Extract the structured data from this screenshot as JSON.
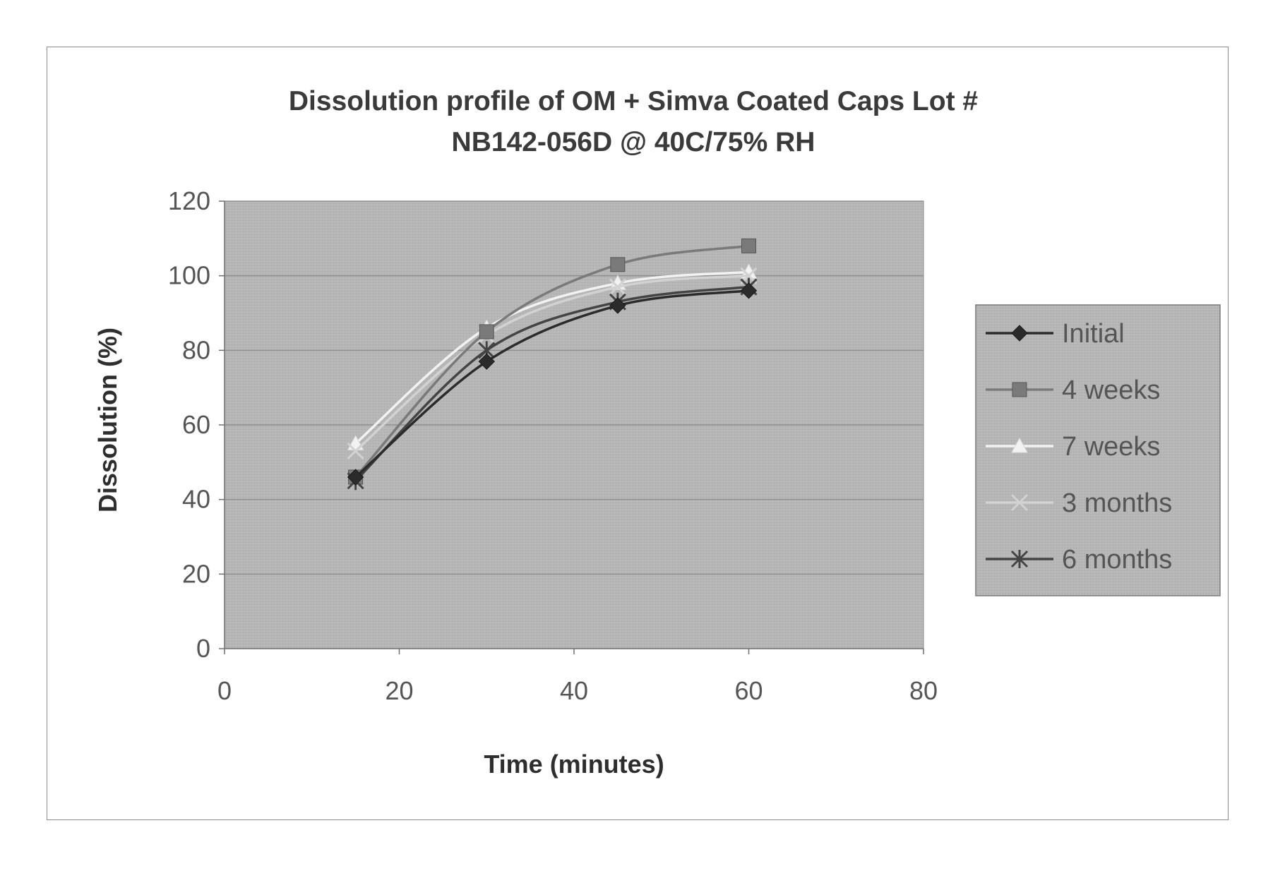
{
  "chart_data": {
    "type": "line",
    "title_lines": [
      "Dissolution profile of OM + Simva Coated Caps Lot #",
      "NB142-056D @ 40C/75% RH"
    ],
    "xlabel": "Time (minutes)",
    "ylabel": "Dissolution (%)",
    "xlim": [
      0,
      80
    ],
    "ylim": [
      0,
      120
    ],
    "x_ticks": [
      0,
      20,
      40,
      60,
      80
    ],
    "y_ticks": [
      0,
      20,
      40,
      60,
      80,
      100,
      120
    ],
    "grid": "horizontal",
    "legend_position": "right",
    "x": [
      15,
      30,
      45,
      60
    ],
    "series": [
      {
        "name": "Initial",
        "values": [
          46,
          77,
          92,
          96
        ],
        "color": "#2b2b2b",
        "marker": "diamond"
      },
      {
        "name": "4 weeks",
        "values": [
          46,
          85,
          103,
          108
        ],
        "color": "#7a7a7a",
        "marker": "square"
      },
      {
        "name": "7 weeks",
        "values": [
          55,
          86,
          98,
          101
        ],
        "color": "#f2f2f2",
        "marker": "triangle"
      },
      {
        "name": "3 months",
        "values": [
          53,
          84,
          97,
          100
        ],
        "color": "#d2d2d2",
        "marker": "x"
      },
      {
        "name": "6 months",
        "values": [
          45,
          80,
          93,
          97
        ],
        "color": "#444444",
        "marker": "star"
      }
    ],
    "colors": {
      "plot_background": "#b6b6b6",
      "gridline": "#8f8f8f"
    }
  }
}
